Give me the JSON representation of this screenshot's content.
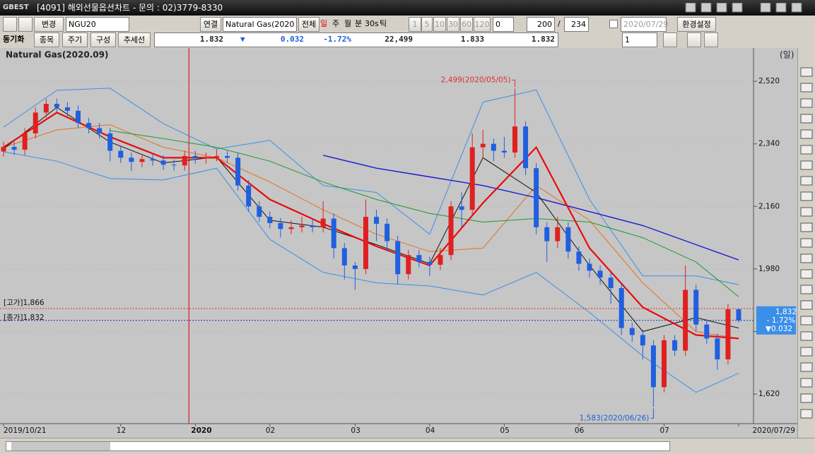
{
  "window": {
    "title": "[4091] 해외선물옵션차트 - 문의 : 02)3779-8330",
    "toolbar": [
      "변경",
      "NGU20",
      "연결",
      "Natural Gas(2020",
      "전체",
      "일",
      "주",
      "월",
      "분",
      "30s",
      "틱",
      "1",
      "5",
      "10",
      "30",
      "60",
      "120",
      "0",
      "200",
      "/",
      "234",
      "2020/07/29",
      "환경설정"
    ],
    "toolbar2": [
      "동기화",
      "종목",
      "주기",
      "구성",
      "추세선"
    ],
    "quote": [
      "1.832",
      "▼",
      "0.032",
      "-1.72%",
      "22,499",
      "1.833",
      "1.832"
    ],
    "combo": "1"
  },
  "chart_data": {
    "type": "candlestick",
    "title": "Natural Gas(2020.09)",
    "unit": "(일)",
    "categories": [
      "2019/10/21",
      null,
      null,
      null,
      null,
      null,
      null,
      null,
      null,
      null,
      null,
      "12",
      null,
      null,
      null,
      null,
      null,
      null,
      "2020",
      null,
      null,
      null,
      null,
      null,
      null,
      "02",
      null,
      null,
      null,
      null,
      null,
      null,
      null,
      "03",
      null,
      null,
      null,
      null,
      null,
      null,
      "04",
      null,
      null,
      null,
      null,
      null,
      null,
      "05",
      null,
      null,
      null,
      null,
      null,
      null,
      "06",
      null,
      null,
      null,
      null,
      null,
      null,
      null,
      "07",
      null,
      null,
      null,
      null,
      null,
      null,
      "2020/07/29"
    ],
    "open": [
      2318,
      2331,
      2323,
      2370,
      2430,
      2455,
      2445,
      2435,
      2400,
      2385,
      2370,
      2320,
      2300,
      2288,
      2296,
      2292,
      2280,
      2278,
      2305,
      2298,
      2300,
      2305,
      2300,
      2220,
      2160,
      2130,
      2112,
      2095,
      2100,
      2105,
      2100,
      2125,
      2040,
      1990,
      1980,
      2130,
      2110,
      2060,
      1965,
      2020,
      2000,
      1992,
      2020,
      2160,
      2150,
      2330,
      2340,
      2320,
      2315,
      2390,
      2270,
      2100,
      2060,
      2100,
      2030,
      1995,
      1975,
      1955,
      1925,
      1810,
      1790,
      1760,
      1640,
      1775,
      1745,
      1920,
      1820,
      1780,
      1720,
      1864
    ],
    "high": [
      2346,
      2346,
      2385,
      2445,
      2470,
      2470,
      2460,
      2450,
      2415,
      2400,
      2385,
      2335,
      2315,
      2311,
      2311,
      2307,
      2295,
      2320,
      2320,
      2315,
      2325,
      2320,
      2315,
      2235,
      2175,
      2145,
      2127,
      2120,
      2130,
      2125,
      2175,
      2140,
      2055,
      2000,
      2180,
      2150,
      2125,
      2075,
      2035,
      2035,
      2015,
      2040,
      2175,
      2200,
      2370,
      2380,
      2355,
      2360,
      2499,
      2405,
      2285,
      2115,
      2130,
      2115,
      2045,
      2010,
      1990,
      1970,
      1940,
      1825,
      1805,
      1775,
      1790,
      1790,
      1990,
      1935,
      1835,
      1795,
      1880,
      1866
    ],
    "low": [
      2303,
      2308,
      2308,
      2355,
      2415,
      2430,
      2420,
      2385,
      2370,
      2355,
      2290,
      2285,
      2262,
      2273,
      2277,
      2265,
      2263,
      2263,
      2283,
      2283,
      2290,
      2285,
      2205,
      2145,
      2115,
      2097,
      2070,
      2080,
      2085,
      2085,
      2085,
      2010,
      1950,
      1920,
      1965,
      2060,
      2030,
      1935,
      1950,
      1985,
      1960,
      1977,
      2005,
      2100,
      2135,
      2300,
      2290,
      2300,
      2300,
      2250,
      2080,
      2000,
      2040,
      2010,
      1975,
      1955,
      1935,
      1880,
      1790,
      1770,
      1720,
      1583,
      1625,
      1730,
      1730,
      1800,
      1765,
      1690,
      1705,
      1826
    ],
    "close": [
      2331,
      2323,
      2370,
      2430,
      2455,
      2445,
      2435,
      2400,
      2385,
      2370,
      2320,
      2300,
      2288,
      2296,
      2292,
      2280,
      2278,
      2305,
      2298,
      2300,
      2305,
      2300,
      2220,
      2160,
      2130,
      2112,
      2095,
      2100,
      2105,
      2100,
      2125,
      2040,
      1990,
      1980,
      2130,
      2110,
      2060,
      1965,
      2020,
      2000,
      1992,
      2020,
      2160,
      2150,
      2330,
      2340,
      2320,
      2315,
      2390,
      2270,
      2100,
      2060,
      2100,
      2030,
      1995,
      1975,
      1955,
      1925,
      1810,
      1790,
      1760,
      1640,
      1775,
      1745,
      1920,
      1820,
      1780,
      1720,
      1864,
      1832
    ],
    "up_color": "#e02020",
    "down_color": "#1f5fe0",
    "lines": [
      {
        "color": "#3a8fe8",
        "width": 1,
        "x": [
          0,
          5,
          10,
          15,
          20,
          25,
          30,
          35,
          40,
          45,
          50,
          55,
          60,
          65,
          69
        ],
        "values": [
          2388,
          2494,
          2500,
          2398,
          2325,
          2350,
          2220,
          2200,
          2080,
          2460,
          2495,
          2180,
          1960,
          1960,
          1935
        ]
      },
      {
        "color": "#3a8fe8",
        "width": 1,
        "x": [
          0,
          5,
          10,
          15,
          20,
          25,
          30,
          35,
          40,
          45,
          50,
          55,
          60,
          65,
          69
        ],
        "values": [
          2317,
          2290,
          2240,
          2236,
          2270,
          2065,
          1970,
          1940,
          1931,
          1905,
          1970,
          1855,
          1730,
          1625,
          1680
        ]
      },
      {
        "color": "#e8701e",
        "width": 1,
        "x": [
          0,
          5,
          10,
          15,
          20,
          25,
          30,
          35,
          40,
          45,
          50,
          55,
          60,
          65,
          69
        ],
        "values": [
          2330,
          2380,
          2395,
          2330,
          2300,
          2230,
          2150,
          2080,
          2030,
          2040,
          2220,
          2120,
          1940,
          1800,
          1780
        ]
      },
      {
        "color": "#1e9a2a",
        "width": 1,
        "x": [
          10,
          15,
          20,
          25,
          30,
          35,
          40,
          45,
          50,
          55,
          60,
          65,
          69
        ],
        "values": [
          2378,
          2355,
          2330,
          2290,
          2230,
          2180,
          2140,
          2115,
          2125,
          2115,
          2070,
          2000,
          1900
        ]
      },
      {
        "color": "#1a1ad0",
        "width": 1.4,
        "x": [
          30,
          35,
          40,
          45,
          50,
          55,
          60,
          65,
          69
        ],
        "values": [
          2307,
          2270,
          2245,
          2220,
          2185,
          2145,
          2105,
          2050,
          2006
        ]
      },
      {
        "color": "#111111",
        "width": 1,
        "x": [
          0,
          5,
          10,
          15,
          20,
          25,
          30,
          35,
          40,
          45,
          50,
          55,
          60,
          65,
          69
        ],
        "values": [
          2325,
          2445,
          2345,
          2285,
          2302,
          2120,
          2100,
          2050,
          1995,
          2300,
          2200,
          1990,
          1800,
          1840,
          1810
        ]
      },
      {
        "color": "#e80c0c",
        "width": 2.2,
        "x": [
          0,
          5,
          10,
          15,
          20,
          25,
          30,
          35,
          40,
          45,
          50,
          55,
          60,
          65,
          69
        ],
        "values": [
          2330,
          2430,
          2360,
          2300,
          2300,
          2180,
          2110,
          2045,
          1990,
          2170,
          2330,
          2040,
          1870,
          1790,
          1780
        ]
      }
    ],
    "ylim": [
      1535,
      2575
    ],
    "yticks": [
      {
        "value": 1620,
        "label": "1,620"
      },
      {
        "value": 1800,
        "label": "1,800"
      },
      {
        "value": 1980,
        "label": "1,980"
      },
      {
        "value": 2160,
        "label": "2,160"
      },
      {
        "value": 2340,
        "label": "2,340"
      },
      {
        "value": 2520,
        "label": "2,520"
      }
    ],
    "grid": true,
    "levels": [
      {
        "value": 1866,
        "label": "[고가]1,866",
        "color": "#e03030"
      },
      {
        "value": 1832,
        "label": "[종가]1,832",
        "color": "#1030c0"
      }
    ],
    "annotations": [
      {
        "x": 48,
        "value": 2499,
        "label": "2,499(2020/05/05)",
        "color": "#e03030"
      },
      {
        "x": 61,
        "value": 1583,
        "label": "1,583(2020/06/26)",
        "color": "#2060d0"
      }
    ],
    "current": {
      "value": 1832,
      "label": "1,832",
      "change": "- 1.72%",
      "delta": "▼0.032"
    }
  }
}
